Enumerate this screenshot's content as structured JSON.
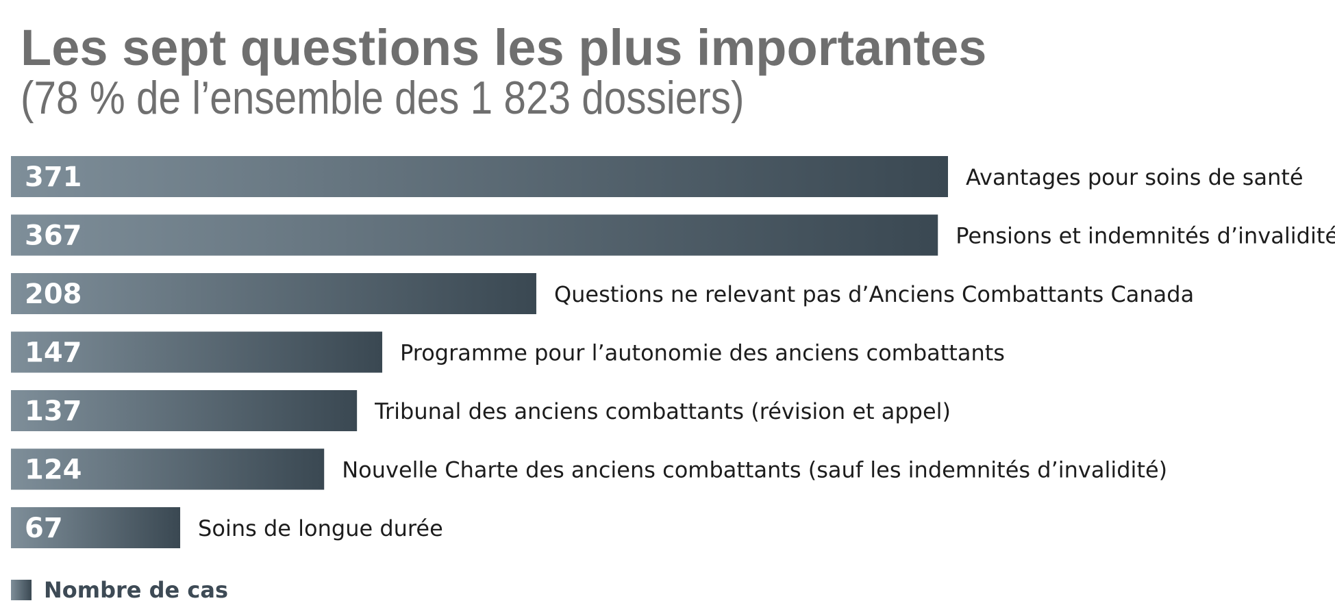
{
  "chart_data": {
    "type": "bar",
    "orientation": "horizontal",
    "title": "Les sept questions les plus importantes",
    "subtitle": "(78 % de l’ensemble des 1 823 dossiers)",
    "categories": [
      "Avantages pour soins de santé",
      "Pensions et indemnités d’invalidité",
      "Questions ne relevant  pas d’Anciens Combattants Canada",
      "Programme pour l’autonomie des anciens combattants",
      "Tribunal des anciens combattants (révision et appel)",
      "Nouvelle Charte des anciens combattants (sauf les indemnités d’invalidité)",
      "Soins de longue durée"
    ],
    "series": [
      {
        "name": "Nombre de cas",
        "values": [
          371,
          367,
          208,
          147,
          137,
          124,
          67
        ]
      }
    ],
    "xlim": [
      0,
      371
    ],
    "grid": false,
    "legend": "bottom-left",
    "colors": {
      "bar_gradient_start": "#7e8e99",
      "bar_gradient_end": "#3a4852",
      "value_label": "#ffffff",
      "category_label": "#1c1c1c",
      "title": "#6f6f6f"
    }
  }
}
